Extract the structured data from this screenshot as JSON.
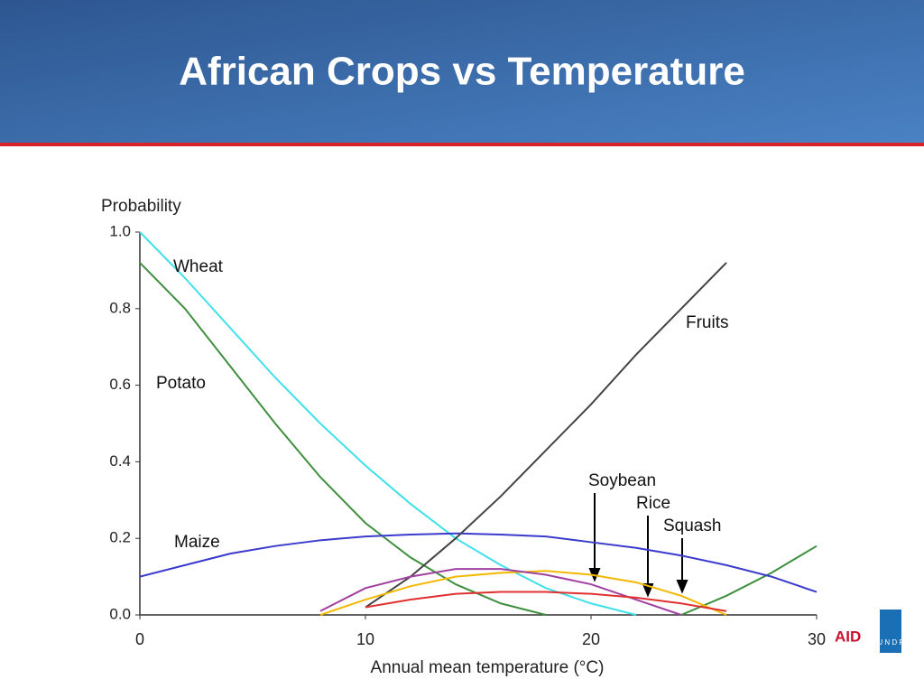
{
  "header": {
    "title": "African Crops vs Temperature"
  },
  "chart_data": {
    "type": "line",
    "ylabel": "Probability",
    "xlabel": "Annual mean temperature (°C)",
    "x": [
      0,
      2,
      4,
      6,
      8,
      10,
      12,
      14,
      16,
      18,
      20,
      22,
      24,
      26,
      28,
      30
    ],
    "xlim": [
      0,
      30
    ],
    "xticks": [
      0,
      10,
      20,
      30
    ],
    "ylim": [
      0,
      1
    ],
    "yticks": [
      {
        "value": 0,
        "label": "0.0"
      },
      0.2,
      0.4,
      0.6,
      0.8,
      {
        "value": 1,
        "label": "1.0"
      }
    ],
    "series": [
      {
        "name": "Wheat",
        "color": "#3fe0ea",
        "values": [
          1.0,
          0.88,
          0.75,
          0.62,
          0.5,
          0.39,
          0.29,
          0.2,
          0.13,
          0.07,
          0.03,
          0.0,
          null,
          null,
          null,
          null
        ]
      },
      {
        "name": "Potato",
        "color": "#3f8f3f",
        "values": [
          0.92,
          0.8,
          0.65,
          0.5,
          0.36,
          0.24,
          0.15,
          0.08,
          0.03,
          0.0,
          null,
          null,
          0.0,
          0.05,
          0.11,
          0.18
        ]
      },
      {
        "name": "Maize",
        "color": "#3a3acc",
        "values": [
          0.1,
          0.13,
          0.16,
          0.18,
          0.195,
          0.205,
          0.21,
          0.213,
          0.21,
          0.205,
          0.19,
          0.175,
          0.155,
          0.13,
          0.1,
          0.06
        ]
      },
      {
        "name": "Fruits",
        "color": "#444444",
        "values": [
          null,
          null,
          null,
          null,
          null,
          0.02,
          0.1,
          0.2,
          0.31,
          0.43,
          0.55,
          0.68,
          0.8,
          0.92,
          null,
          null
        ]
      },
      {
        "name": "Soybean",
        "color": "#f2b800",
        "values": [
          null,
          null,
          null,
          null,
          0.0,
          0.04,
          0.075,
          0.1,
          0.11,
          0.115,
          0.105,
          0.085,
          0.05,
          0.0,
          null,
          null
        ]
      },
      {
        "name": "Rice",
        "color": "#a040a0",
        "values": [
          null,
          null,
          null,
          null,
          0.01,
          0.07,
          0.1,
          0.12,
          0.12,
          0.105,
          0.08,
          0.04,
          0.0,
          null,
          null,
          null
        ]
      },
      {
        "name": "Squash",
        "color": "#e03030",
        "values": [
          null,
          null,
          null,
          null,
          null,
          0.02,
          0.04,
          0.055,
          0.06,
          0.06,
          0.055,
          0.045,
          0.03,
          0.01,
          null,
          null
        ]
      }
    ]
  },
  "logos": [
    "AID",
    "U N D P"
  ]
}
